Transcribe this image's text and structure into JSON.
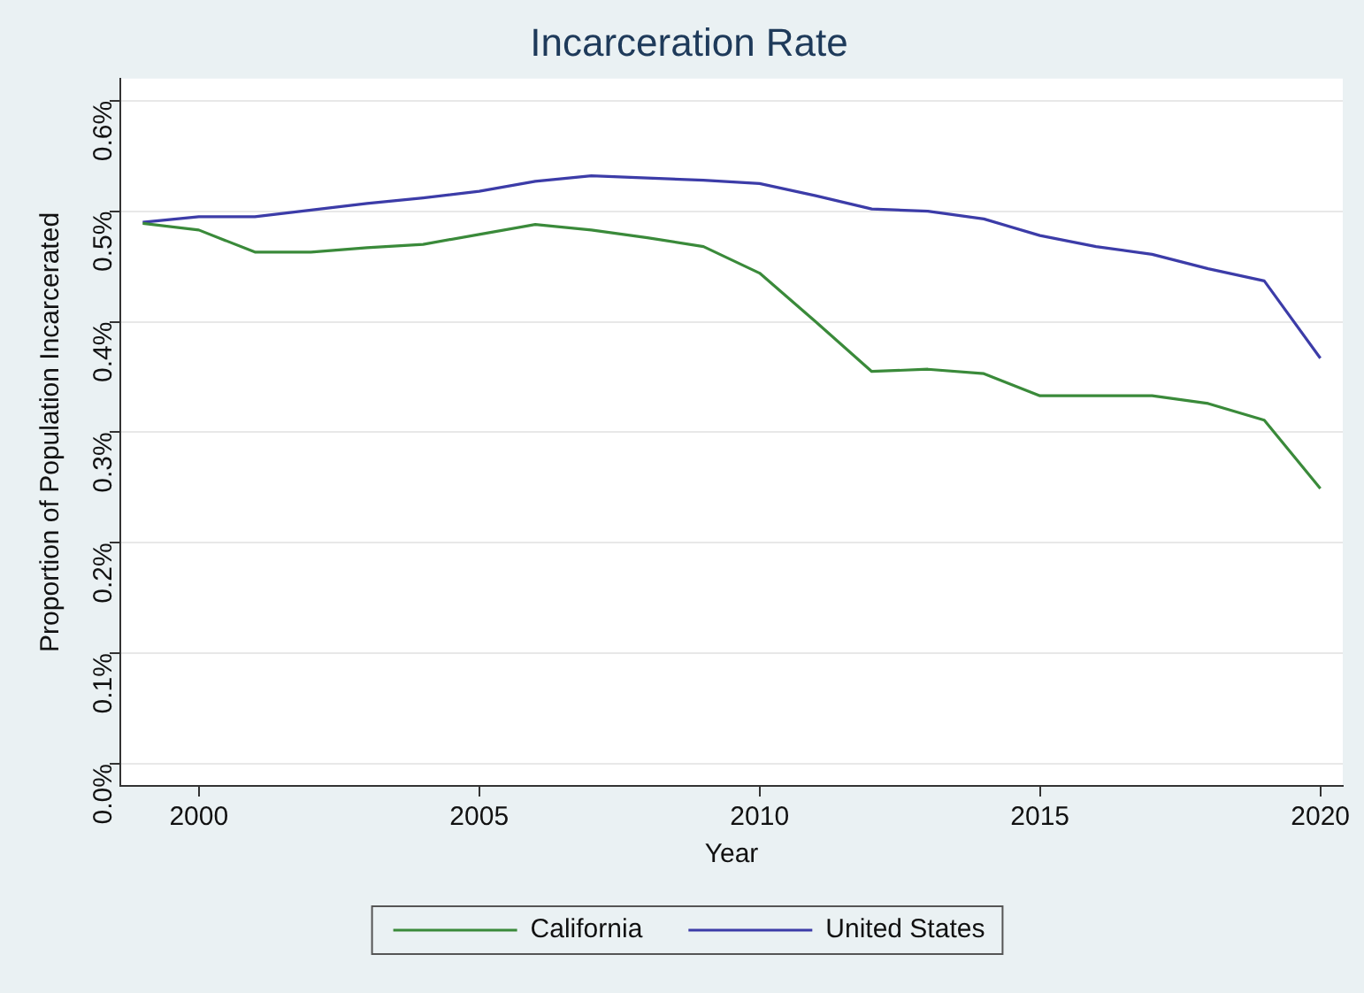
{
  "chart_data": {
    "type": "line",
    "title": "Incarceration Rate",
    "xlabel": "Year",
    "ylabel": "Proportion of Population Incarcerated",
    "x": [
      1999,
      2000,
      2001,
      2002,
      2003,
      2004,
      2005,
      2006,
      2007,
      2008,
      2009,
      2010,
      2011,
      2012,
      2013,
      2014,
      2015,
      2016,
      2017,
      2018,
      2019,
      2020
    ],
    "series": [
      {
        "name": "California",
        "color": "#3a8a3a",
        "values": [
          0.489,
          0.483,
          0.463,
          0.463,
          0.467,
          0.47,
          0.479,
          0.488,
          0.483,
          0.476,
          0.468,
          0.444,
          0.4,
          0.355,
          0.357,
          0.353,
          0.333,
          0.333,
          0.333,
          0.326,
          0.311,
          0.249
        ]
      },
      {
        "name": "United States",
        "color": "#3c3ca8",
        "values": [
          0.49,
          0.495,
          0.495,
          0.501,
          0.507,
          0.512,
          0.518,
          0.527,
          0.532,
          0.53,
          0.528,
          0.525,
          0.514,
          0.502,
          0.5,
          0.493,
          0.478,
          0.468,
          0.461,
          0.448,
          0.437,
          0.367
        ]
      }
    ],
    "xlim": [
      1998.6,
      2020.4
    ],
    "xticks": [
      2000,
      2005,
      2010,
      2015,
      2020
    ],
    "ylim": [
      -0.02,
      0.62
    ],
    "yticks": [
      {
        "value": 0,
        "label": "0.0%"
      },
      {
        "value": 0.1,
        "label": "0.1%"
      },
      {
        "value": 0.2,
        "label": "0.2%"
      },
      {
        "value": 0.3,
        "label": "0.3%"
      },
      {
        "value": 0.4,
        "label": "0.4%"
      },
      {
        "value": 0.5,
        "label": "0.5%"
      },
      {
        "value": 0.6,
        "label": "0.6%"
      }
    ],
    "grid": "y",
    "legend": "bottom",
    "marker": "none",
    "line_style": "solid"
  }
}
